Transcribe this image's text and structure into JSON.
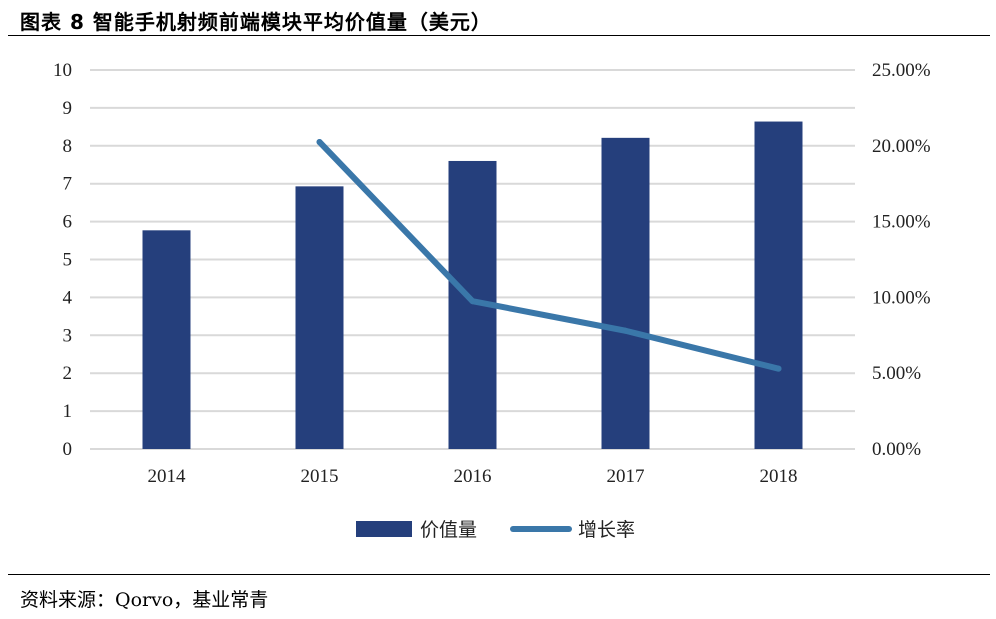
{
  "figure": {
    "title": "图表 8 智能手机射频前端模块平均价值量（美元）",
    "source": "资料来源：Qorvo，基业常青"
  },
  "colors": {
    "bar": "#253f7c",
    "line": "#3a77a9",
    "grid": "#d9d9d9"
  },
  "chart_data": {
    "type": "bar",
    "categories": [
      "2014",
      "2015",
      "2016",
      "2017",
      "2018"
    ],
    "series": [
      {
        "name": "价值量",
        "type": "bar",
        "axis": "left",
        "values": [
          5.77,
          6.93,
          7.6,
          8.21,
          8.64
        ]
      },
      {
        "name": "增长率",
        "type": "line",
        "axis": "right",
        "values": [
          null,
          0.2025,
          0.0975,
          0.078,
          0.053
        ]
      }
    ],
    "y_left": {
      "lim": [
        0,
        10
      ],
      "ticks": [
        "0",
        "1",
        "2",
        "3",
        "4",
        "5",
        "6",
        "7",
        "8",
        "9",
        "10"
      ]
    },
    "y_right": {
      "lim": [
        0,
        0.25
      ],
      "ticks": [
        "0.00%",
        "5.00%",
        "10.00%",
        "15.00%",
        "20.00%",
        "25.00%"
      ]
    },
    "grid": true,
    "legend_position": "bottom-center"
  }
}
